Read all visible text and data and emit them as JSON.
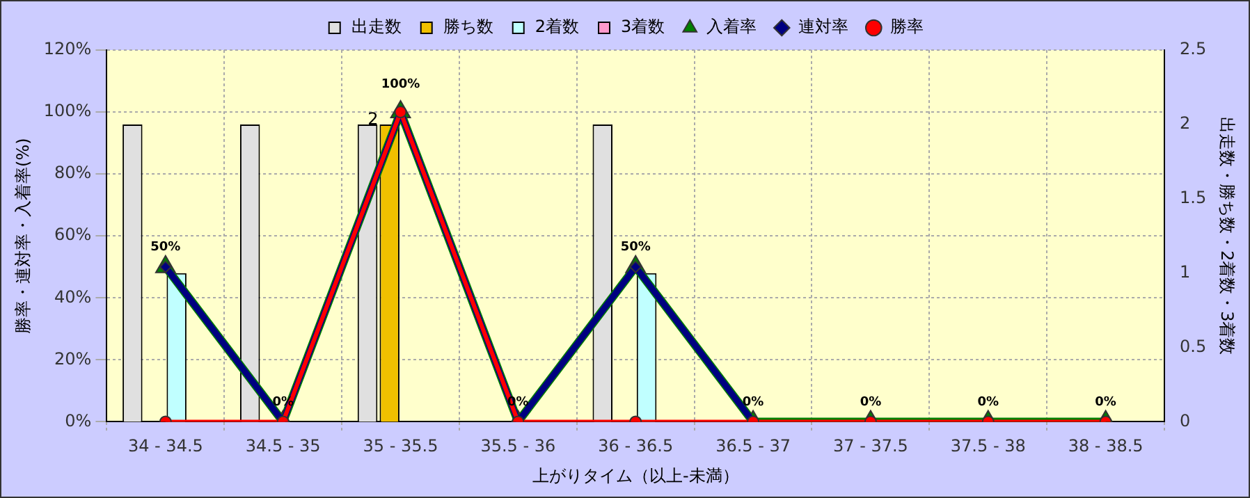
{
  "chart_data": {
    "type": "bar",
    "categories": [
      "34 - 34.5",
      "34.5 - 35",
      "35 - 35.5",
      "35.5 - 36",
      "36 - 36.5",
      "36.5 - 37",
      "37 - 37.5",
      "37.5 - 38",
      "38 - 38.5"
    ],
    "series": [
      {
        "name": "出走数",
        "type": "bar",
        "axis": "y2",
        "color": "#e0e0e0",
        "values": [
          2,
          2,
          2,
          0,
          2,
          0,
          0,
          0,
          0
        ]
      },
      {
        "name": "勝ち数",
        "type": "bar",
        "axis": "y2",
        "color": "#f0c000",
        "values": [
          0,
          0,
          2,
          0,
          0,
          0,
          0,
          0,
          0
        ],
        "value_labels": [
          null,
          null,
          "2",
          null,
          null,
          null,
          null,
          null,
          null
        ]
      },
      {
        "name": "2着数",
        "type": "bar",
        "axis": "y2",
        "color": "#c0ffff",
        "values": [
          1,
          0,
          0,
          0,
          1,
          0,
          0,
          0,
          0
        ]
      },
      {
        "name": "3着数",
        "type": "bar",
        "axis": "y2",
        "color": "#ff99cc",
        "values": [
          0,
          0,
          0,
          0,
          0,
          0,
          0,
          0,
          0
        ]
      },
      {
        "name": "入着率",
        "type": "line",
        "axis": "y",
        "color": "#008000",
        "marker": "triangle",
        "values": [
          50,
          0,
          100,
          0,
          50,
          0,
          0,
          0,
          0
        ],
        "value_labels": [
          "50%",
          "0%",
          "100%",
          "0%",
          "50%",
          "0%",
          "0%",
          "0%",
          "0%"
        ]
      },
      {
        "name": "連対率",
        "type": "line",
        "axis": "y",
        "color": "#000080",
        "marker": "diamond",
        "values": [
          50,
          0,
          100,
          0,
          50,
          0,
          null,
          null,
          null
        ]
      },
      {
        "name": "勝率",
        "type": "line",
        "axis": "y",
        "color": "#ff0000",
        "marker": "circle",
        "values": [
          0,
          0,
          100,
          0,
          0,
          0,
          0,
          0,
          0
        ]
      }
    ],
    "xlabel": "上がりタイム（以上-未満）",
    "ylabel": "勝率・連対率・入着率(%)",
    "y2label": "出走数・勝ち数・2着数・3着数",
    "ylim": [
      0,
      120
    ],
    "yticks": [
      {
        "value": 0,
        "label": "0%"
      },
      {
        "value": 20,
        "label": "20%"
      },
      {
        "value": 40,
        "label": "40%"
      },
      {
        "value": 60,
        "label": "60%"
      },
      {
        "value": 80,
        "label": "80%"
      },
      {
        "value": 100,
        "label": "100%"
      },
      {
        "value": 120,
        "label": "120%"
      }
    ],
    "y2lim": [
      0,
      2.5
    ],
    "y2ticks": [
      0,
      0.5,
      1,
      1.5,
      2,
      2.5
    ],
    "grid": true,
    "legend": "top"
  }
}
